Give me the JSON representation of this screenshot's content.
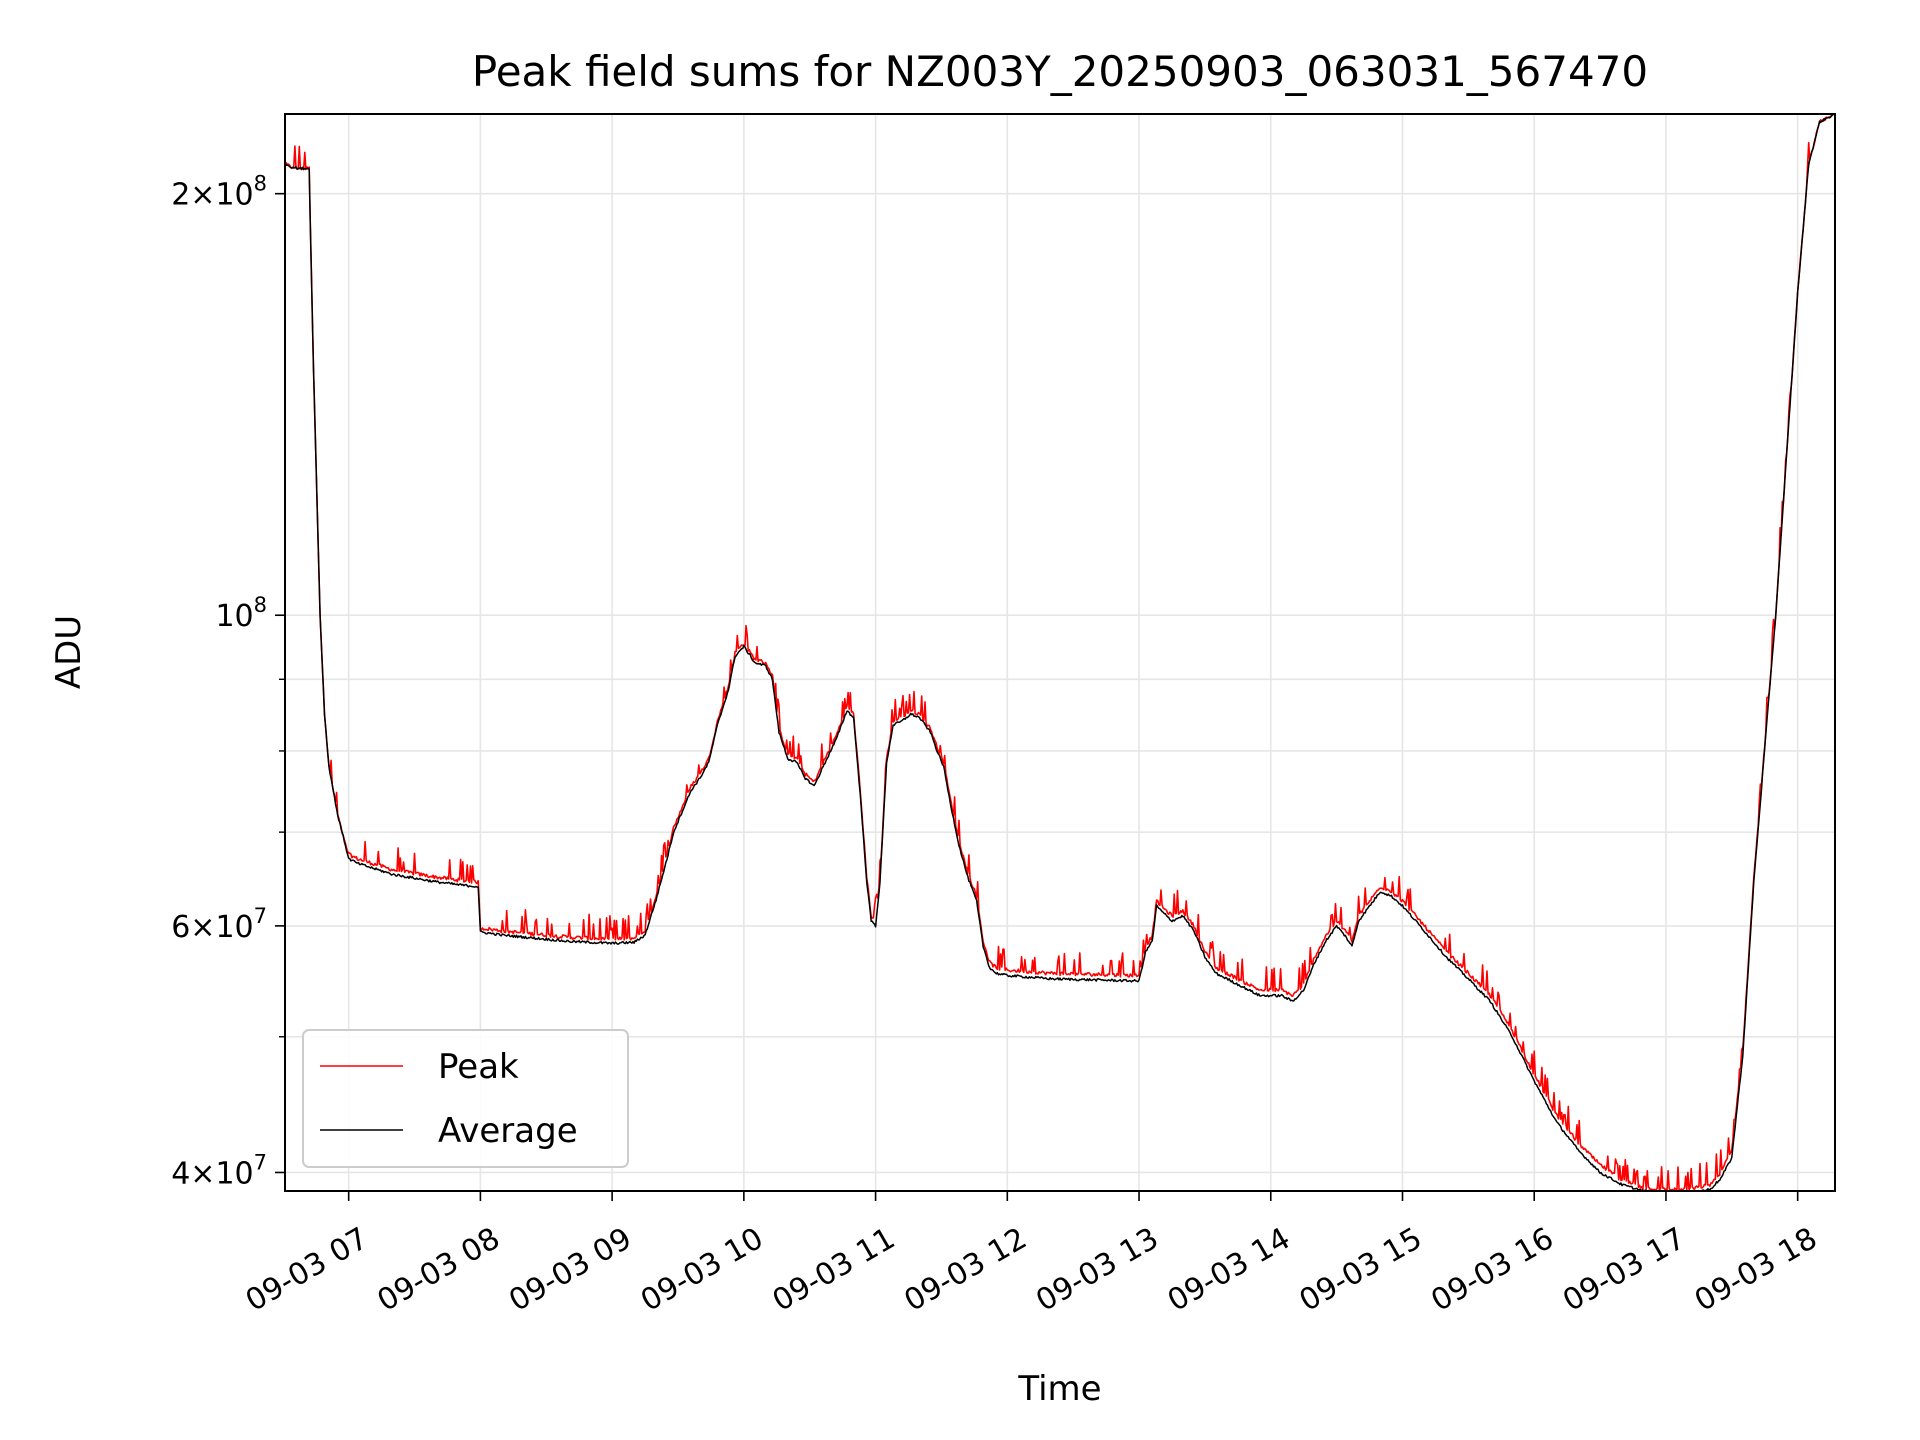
{
  "chart_data": {
    "type": "line",
    "title": "Peak field sums for NZ003Y_20250903_063031_567470",
    "xlabel": "Time",
    "ylabel": "ADU",
    "y_scale": "log",
    "ylim": [
      38800000,
      228000000
    ],
    "xlim": [
      "2025-09-03 06:31",
      "2025-09-03 18:17"
    ],
    "x_ticks": [
      {
        "value": "2025-09-03 07:00",
        "label": "09-03 07"
      },
      {
        "value": "2025-09-03 08:00",
        "label": "09-03 08"
      },
      {
        "value": "2025-09-03 09:00",
        "label": "09-03 09"
      },
      {
        "value": "2025-09-03 10:00",
        "label": "09-03 10"
      },
      {
        "value": "2025-09-03 11:00",
        "label": "09-03 11"
      },
      {
        "value": "2025-09-03 12:00",
        "label": "09-03 12"
      },
      {
        "value": "2025-09-03 13:00",
        "label": "09-03 13"
      },
      {
        "value": "2025-09-03 14:00",
        "label": "09-03 14"
      },
      {
        "value": "2025-09-03 15:00",
        "label": "09-03 15"
      },
      {
        "value": "2025-09-03 16:00",
        "label": "09-03 16"
      },
      {
        "value": "2025-09-03 17:00",
        "label": "09-03 17"
      },
      {
        "value": "2025-09-03 18:00",
        "label": "09-03 18"
      }
    ],
    "y_ticks": [
      {
        "value": 40000000,
        "base": "4",
        "exp": "7"
      },
      {
        "value": 60000000,
        "base": "6",
        "exp": "7"
      },
      {
        "value": 100000000,
        "base": "",
        "exp": "8"
      },
      {
        "value": 200000000,
        "base": "2",
        "exp": "8"
      }
    ],
    "y_minor_ticks": [
      50000000,
      70000000,
      80000000,
      90000000
    ],
    "grid": true,
    "legend_position": "lower-left",
    "series": [
      {
        "name": "Peak",
        "color": "#ff0000",
        "noisy": true,
        "x": [
          "06:31",
          "06:34",
          "06:37",
          "06:38",
          "06:40",
          "06:42",
          "06:44",
          "06:47",
          "06:49",
          "06:51",
          "06:55",
          "06:58",
          "07:00",
          "07:04",
          "07:08",
          "07:12",
          "07:16",
          "07:20",
          "07:30",
          "07:40",
          "07:50",
          "07:59",
          "08:00",
          "08:10",
          "08:20",
          "08:40",
          "09:00",
          "09:10",
          "09:15",
          "09:20",
          "09:25",
          "09:28",
          "09:32",
          "09:36",
          "09:40",
          "09:44",
          "09:48",
          "09:53",
          "09:56",
          "10:00",
          "10:05",
          "10:10",
          "10:13",
          "10:16",
          "10:20",
          "10:24",
          "10:28",
          "10:32",
          "10:37",
          "10:42",
          "10:47",
          "10:50",
          "10:53",
          "10:56",
          "10:58",
          "11:00",
          "11:02",
          "11:05",
          "11:08",
          "11:12",
          "11:16",
          "11:20",
          "11:25",
          "11:28",
          "11:31",
          "11:34",
          "11:38",
          "11:42",
          "11:46",
          "11:49",
          "11:52",
          "11:55",
          "12:00",
          "12:20",
          "12:40",
          "13:00",
          "13:03",
          "13:06",
          "13:08",
          "13:11",
          "13:15",
          "13:20",
          "13:25",
          "13:30",
          "13:35",
          "13:40",
          "13:45",
          "13:50",
          "13:55",
          "14:00",
          "14:05",
          "14:10",
          "14:15",
          "14:20",
          "14:25",
          "14:30",
          "14:34",
          "14:37",
          "14:40",
          "14:45",
          "14:50",
          "14:55",
          "15:00",
          "15:10",
          "15:20",
          "15:30",
          "15:40",
          "15:50",
          "16:00",
          "16:10",
          "16:20",
          "16:30",
          "16:40",
          "16:50",
          "17:00",
          "17:10",
          "17:20",
          "17:25",
          "17:30",
          "17:35",
          "17:40",
          "17:50",
          "18:00",
          "18:05",
          "18:10",
          "18:17"
        ],
        "values": [
          210000000,
          209000000,
          208500000,
          208500000,
          208500000,
          208500000,
          150000000,
          100000000,
          85000000,
          78000000,
          72000000,
          69000000,
          67500000,
          67000000,
          66700000,
          66400000,
          66100000,
          65800000,
          65400000,
          65000000,
          64700000,
          64500000,
          59800000,
          59500000,
          59300000,
          58900000,
          58700000,
          58800000,
          59500000,
          63000000,
          67500000,
          70500000,
          73000000,
          75500000,
          77000000,
          79000000,
          84000000,
          89000000,
          94000000,
          95500000,
          93000000,
          92500000,
          90500000,
          83000000,
          79500000,
          79000000,
          77000000,
          76000000,
          79000000,
          82000000,
          86000000,
          85000000,
          75000000,
          65000000,
          61000000,
          60500000,
          65000000,
          79000000,
          84000000,
          84500000,
          85500000,
          85000000,
          83000000,
          80500000,
          78500000,
          74000000,
          69000000,
          65500000,
          63000000,
          58500000,
          56500000,
          56000000,
          55800000,
          55500000,
          55400000,
          55300000,
          58000000,
          59000000,
          62500000,
          61800000,
          61000000,
          61500000,
          60000000,
          57500000,
          56000000,
          55500000,
          55000000,
          54500000,
          54000000,
          54000000,
          54000000,
          53500000,
          54500000,
          57000000,
          59000000,
          60500000,
          59500000,
          58500000,
          61000000,
          62500000,
          64000000,
          63500000,
          62500000,
          60000000,
          57500000,
          55500000,
          53500000,
          50500000,
          47000000,
          44000000,
          42000000,
          40500000,
          39500000,
          39000000,
          38900000,
          38900000,
          39200000,
          40000000,
          41500000,
          49000000,
          65000000,
          100000000,
          170000000,
          210000000,
          225000000,
          228000000
        ]
      },
      {
        "name": "Average",
        "color": "#000000",
        "noisy": false,
        "x": [
          "06:31",
          "06:34",
          "06:37",
          "06:38",
          "06:40",
          "06:42",
          "06:44",
          "06:47",
          "06:49",
          "06:51",
          "06:55",
          "06:58",
          "07:00",
          "07:04",
          "07:08",
          "07:12",
          "07:16",
          "07:20",
          "07:30",
          "07:40",
          "07:50",
          "07:59",
          "08:00",
          "08:10",
          "08:20",
          "08:40",
          "09:00",
          "09:10",
          "09:15",
          "09:20",
          "09:25",
          "09:28",
          "09:32",
          "09:36",
          "09:40",
          "09:44",
          "09:48",
          "09:53",
          "09:56",
          "10:00",
          "10:05",
          "10:10",
          "10:13",
          "10:16",
          "10:20",
          "10:24",
          "10:28",
          "10:32",
          "10:37",
          "10:42",
          "10:47",
          "10:50",
          "10:53",
          "10:56",
          "10:58",
          "11:00",
          "11:02",
          "11:05",
          "11:08",
          "11:12",
          "11:16",
          "11:20",
          "11:25",
          "11:28",
          "11:31",
          "11:34",
          "11:38",
          "11:42",
          "11:46",
          "11:49",
          "11:52",
          "11:55",
          "12:00",
          "12:20",
          "12:40",
          "13:00",
          "13:03",
          "13:06",
          "13:08",
          "13:11",
          "13:15",
          "13:20",
          "13:25",
          "13:30",
          "13:35",
          "13:40",
          "13:45",
          "13:50",
          "13:55",
          "14:00",
          "14:05",
          "14:10",
          "14:15",
          "14:20",
          "14:25",
          "14:30",
          "14:34",
          "14:37",
          "14:40",
          "14:45",
          "14:50",
          "14:55",
          "15:00",
          "15:10",
          "15:20",
          "15:30",
          "15:40",
          "15:50",
          "16:00",
          "16:10",
          "16:20",
          "16:30",
          "16:40",
          "16:50",
          "17:00",
          "17:10",
          "17:20",
          "17:25",
          "17:30",
          "17:35",
          "17:40",
          "17:50",
          "18:00",
          "18:05",
          "18:10",
          "18:17"
        ],
        "values": [
          210000000,
          209000000,
          208500000,
          208500000,
          208500000,
          208500000,
          150000000,
          100000000,
          85000000,
          78000000,
          72000000,
          69000000,
          67000000,
          66500000,
          66200000,
          65900000,
          65600000,
          65300000,
          64900000,
          64500000,
          64200000,
          64000000,
          59400000,
          59100000,
          58900000,
          58500000,
          58300000,
          58400000,
          59100000,
          62600000,
          67000000,
          70000000,
          72500000,
          75000000,
          76500000,
          78500000,
          83500000,
          88500000,
          93500000,
          95000000,
          92500000,
          92000000,
          90000000,
          82500000,
          79000000,
          78500000,
          76500000,
          75500000,
          78500000,
          81500000,
          85500000,
          84500000,
          74500000,
          64500000,
          60500000,
          60000000,
          64500000,
          78500000,
          83500000,
          84000000,
          85000000,
          84500000,
          82500000,
          80000000,
          78000000,
          73500000,
          68500000,
          65000000,
          62500000,
          58000000,
          56000000,
          55500000,
          55300000,
          55000000,
          54900000,
          54800000,
          57500000,
          58500000,
          62000000,
          61300000,
          60500000,
          61000000,
          59500000,
          57000000,
          55500000,
          55000000,
          54500000,
          54000000,
          53500000,
          53500000,
          53500000,
          53000000,
          54000000,
          56500000,
          58500000,
          60000000,
          59000000,
          58000000,
          60500000,
          62000000,
          63500000,
          63000000,
          62000000,
          59500000,
          57000000,
          55000000,
          53000000,
          50000000,
          46500000,
          43500000,
          41500000,
          40000000,
          39200000,
          38800000,
          38700000,
          38700000,
          38900000,
          39600000,
          41000000,
          48500000,
          64500000,
          100000000,
          170000000,
          210000000,
          225000000,
          228000000
        ]
      }
    ]
  }
}
